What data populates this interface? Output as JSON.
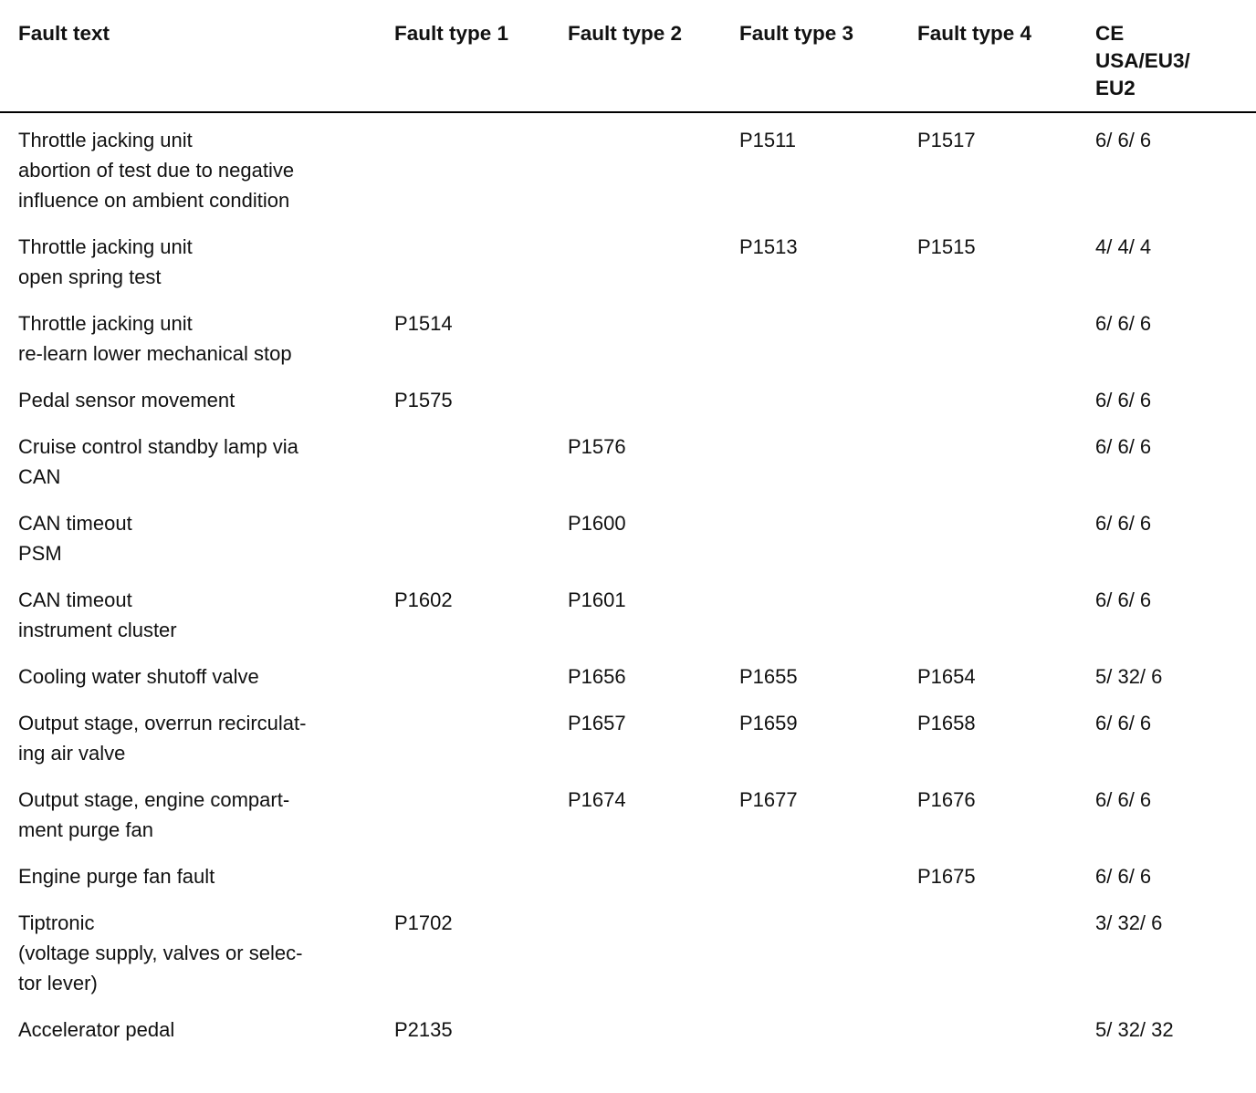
{
  "page": {
    "background": "#ffffff",
    "text_color": "#111111"
  },
  "table": {
    "headers": {
      "fault_text": "Fault text",
      "type1": "Fault type 1",
      "type2": "Fault type 2",
      "type3": "Fault type 3",
      "type4": "Fault type 4",
      "ce": "CE\nUSA/EU3/\nEU2"
    },
    "rows": [
      {
        "fault_text": "Throttle jacking unit\nabortion of test due to negative\ninfluence on ambient condition",
        "type1": "",
        "type2": "",
        "type3": "P1511",
        "type4": "P1517",
        "ce": "6/ 6/ 6"
      },
      {
        "fault_text": "Throttle jacking unit\nopen spring test",
        "type1": "",
        "type2": "",
        "type3": "P1513",
        "type4": "P1515",
        "ce": "4/ 4/ 4"
      },
      {
        "fault_text": "Throttle jacking unit\nre-learn lower mechanical stop",
        "type1": "P1514",
        "type2": "",
        "type3": "",
        "type4": "",
        "ce": "6/ 6/ 6"
      },
      {
        "fault_text": "Pedal sensor movement",
        "type1": "P1575",
        "type2": "",
        "type3": "",
        "type4": "",
        "ce": "6/ 6/ 6"
      },
      {
        "fault_text": "Cruise control standby lamp via\nCAN",
        "type1": "",
        "type2": "P1576",
        "type3": "",
        "type4": "",
        "ce": "6/ 6/ 6"
      },
      {
        "fault_text": "CAN timeout\nPSM",
        "type1": "",
        "type2": "P1600",
        "type3": "",
        "type4": "",
        "ce": "6/ 6/ 6"
      },
      {
        "fault_text": "CAN timeout\ninstrument cluster",
        "type1": "P1602",
        "type2": "P1601",
        "type3": "",
        "type4": "",
        "ce": "6/ 6/ 6"
      },
      {
        "fault_text": "Cooling water shutoff valve",
        "type1": "",
        "type2": "P1656",
        "type3": "P1655",
        "type4": "P1654",
        "ce": "5/ 32/ 6"
      },
      {
        "fault_text": "Output stage, overrun recirculat-\ning air valve",
        "type1": "",
        "type2": "P1657",
        "type3": "P1659",
        "type4": "P1658",
        "ce": "6/ 6/ 6"
      },
      {
        "fault_text": "Output stage, engine compart-\nment purge fan",
        "type1": "",
        "type2": "P1674",
        "type3": "P1677",
        "type4": "P1676",
        "ce": "6/ 6/ 6"
      },
      {
        "fault_text": "Engine purge fan fault",
        "type1": "",
        "type2": "",
        "type3": "",
        "type4": "P1675",
        "ce": "6/ 6/ 6"
      },
      {
        "fault_text": "Tiptronic\n(voltage supply, valves or selec-\ntor lever)",
        "type1": "P1702",
        "type2": "",
        "type3": "",
        "type4": "",
        "ce": "3/ 32/ 6"
      },
      {
        "fault_text": "Accelerator pedal",
        "type1": "P2135",
        "type2": "",
        "type3": "",
        "type4": "",
        "ce": "5/ 32/ 32"
      }
    ]
  }
}
